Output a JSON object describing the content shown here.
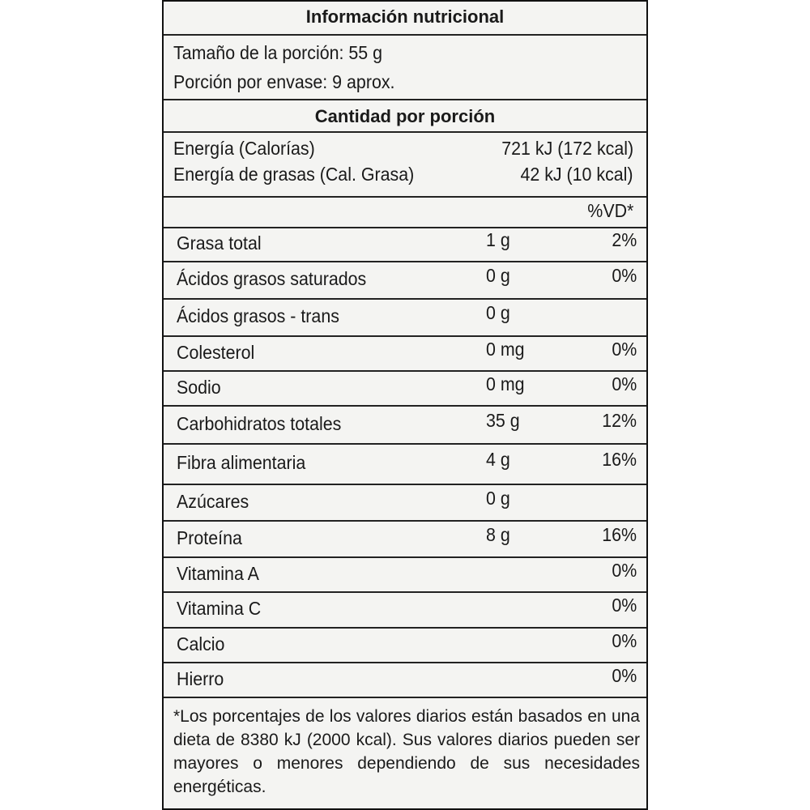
{
  "title": "Información nutricional",
  "serving": {
    "size": "Tamaño de la porción: 55 g",
    "per_container": "Porción por envase: 9 aprox."
  },
  "amount_header": "Cantidad por porción",
  "energy": [
    {
      "name": "Energía (Calorías)",
      "value": "721 kJ (172 kcal)"
    },
    {
      "name": "Energía de grasas (Cal. Grasa)",
      "value": "42 kJ (10 kcal)"
    }
  ],
  "dv_header": "%VD*",
  "nutrients": [
    {
      "name": "Grasa total",
      "amount": "1 g",
      "dv": "2%"
    },
    {
      "name": "Ácidos grasos saturados",
      "amount": "0 g",
      "dv": "0%"
    },
    {
      "name": "Ácidos grasos - trans",
      "amount": "0 g"
    },
    {
      "name": "Colesterol",
      "amount": "0 mg",
      "dv": "0%"
    },
    {
      "name": "Sodio",
      "amount": "0 mg",
      "dv": "0%"
    },
    {
      "name": "Carbohidratos totales",
      "amount": "35 g",
      "dv": "12%"
    },
    {
      "name": "Fibra alimentaria",
      "amount": "4 g",
      "dv": "16%"
    },
    {
      "name": "Azúcares",
      "amount": "0 g"
    },
    {
      "name": "Proteína",
      "amount": "8 g",
      "dv": "16%"
    },
    {
      "name": "Vitamina A",
      "dv": "0%"
    },
    {
      "name": "Vitamina C",
      "dv": "0%"
    },
    {
      "name": "Calcio",
      "dv": "0%"
    },
    {
      "name": "Hierro",
      "dv": "0%"
    }
  ],
  "footnote": "*Los porcentajes de los valores diarios están basados en una dieta de 8380 kJ (2000 kcal). Sus valores diarios pueden ser mayores o menores dependiendo de sus necesidades energéticas."
}
